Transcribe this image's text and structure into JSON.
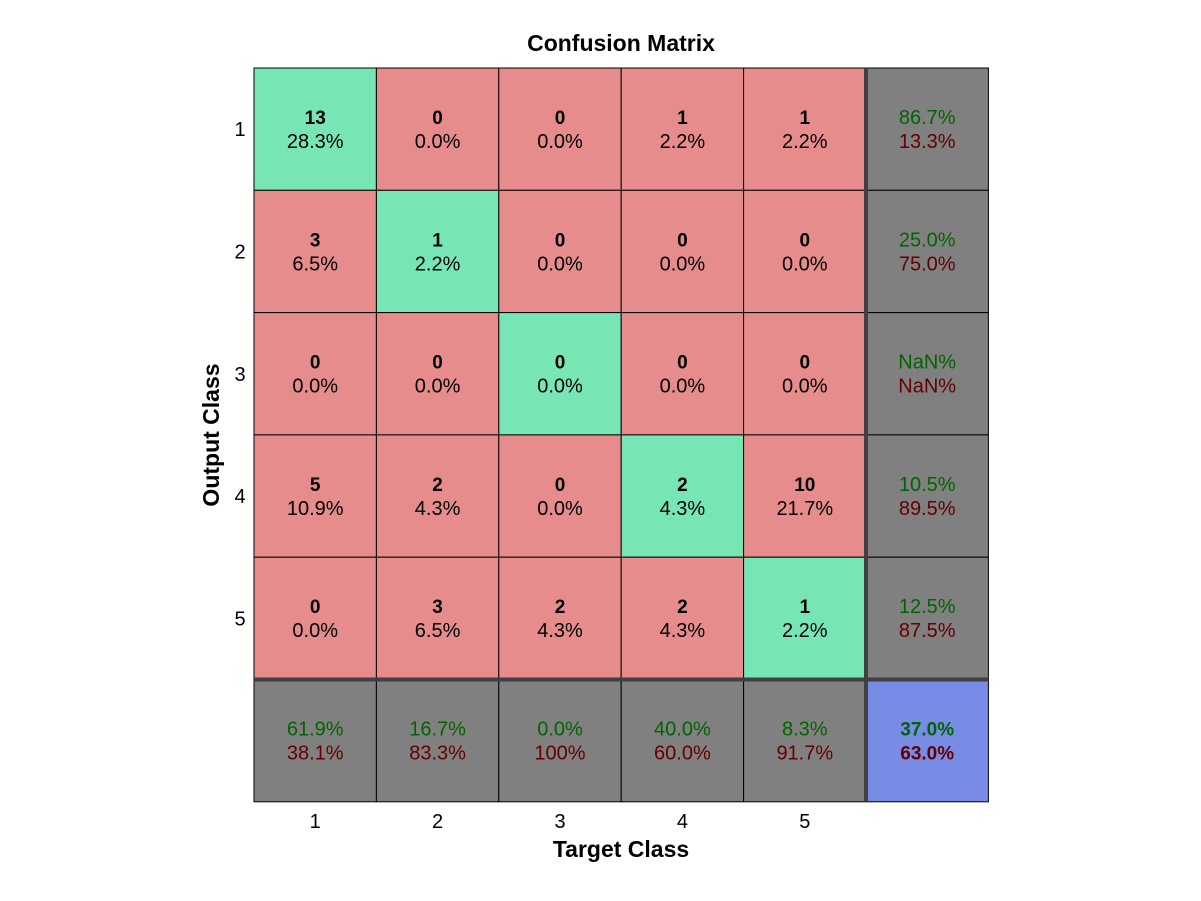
{
  "chart_data": {
    "type": "heatmap",
    "title": "Confusion Matrix",
    "xlabel": "Target Class",
    "ylabel": "Output Class",
    "class_labels": [
      "1",
      "2",
      "3",
      "4",
      "5"
    ],
    "counts": [
      [
        13,
        0,
        0,
        1,
        1
      ],
      [
        3,
        1,
        0,
        0,
        0
      ],
      [
        0,
        0,
        0,
        0,
        0
      ],
      [
        5,
        2,
        0,
        2,
        10
      ],
      [
        0,
        3,
        2,
        2,
        1
      ]
    ],
    "percents": [
      [
        "28.3%",
        "0.0%",
        "0.0%",
        "2.2%",
        "2.2%"
      ],
      [
        "6.5%",
        "2.2%",
        "0.0%",
        "0.0%",
        "0.0%"
      ],
      [
        "0.0%",
        "0.0%",
        "0.0%",
        "0.0%",
        "0.0%"
      ],
      [
        "10.9%",
        "4.3%",
        "0.0%",
        "4.3%",
        "21.7%"
      ],
      [
        "0.0%",
        "6.5%",
        "4.3%",
        "4.3%",
        "2.2%"
      ]
    ],
    "row_summary": [
      {
        "correct": "86.7%",
        "incorrect": "13.3%"
      },
      {
        "correct": "25.0%",
        "incorrect": "75.0%"
      },
      {
        "correct": "NaN%",
        "incorrect": "NaN%"
      },
      {
        "correct": "10.5%",
        "incorrect": "89.5%"
      },
      {
        "correct": "12.5%",
        "incorrect": "87.5%"
      }
    ],
    "col_summary": [
      {
        "correct": "61.9%",
        "incorrect": "38.1%"
      },
      {
        "correct": "16.7%",
        "incorrect": "83.3%"
      },
      {
        "correct": "0.0%",
        "incorrect": "100%"
      },
      {
        "correct": "40.0%",
        "incorrect": "60.0%"
      },
      {
        "correct": "8.3%",
        "incorrect": "91.7%"
      }
    ],
    "overall": {
      "correct": "37.0%",
      "incorrect": "63.0%"
    },
    "colors": {
      "diagonal": "#78e6b4",
      "off_diagonal": "#e68c8c",
      "summary": "#808080",
      "overall": "#788ce6",
      "correct_text": "#006400",
      "incorrect_text": "#640000",
      "grid": "#000000",
      "separator": "#404040"
    }
  }
}
